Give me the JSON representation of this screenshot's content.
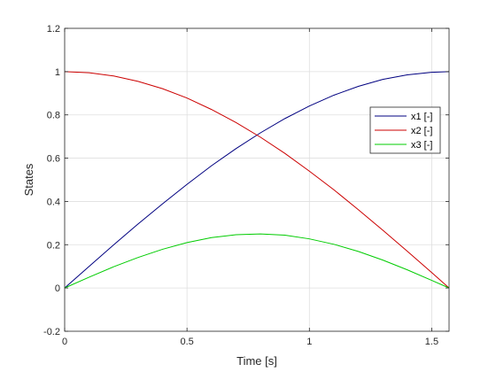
{
  "chart_data": {
    "type": "line",
    "title": "",
    "xlabel": "Time [s]",
    "ylabel": "States",
    "xlim": [
      0,
      1.5708
    ],
    "ylim": [
      -0.2,
      1.2
    ],
    "xticks": [
      0,
      0.5,
      1,
      1.5
    ],
    "xtick_labels": [
      "0",
      "0.5",
      "1",
      "1.5"
    ],
    "yticks": [
      -0.2,
      0,
      0.2,
      0.4,
      0.6,
      0.8,
      1,
      1.2
    ],
    "ytick_labels": [
      "-0.2",
      "0",
      "0.2",
      "0.4",
      "0.6",
      "0.8",
      "1",
      "1.2"
    ],
    "grid": true,
    "legend_position": "upper-right",
    "x": [
      0,
      0.1,
      0.2,
      0.3,
      0.4,
      0.5,
      0.6,
      0.7,
      0.8,
      0.9,
      1.0,
      1.1,
      1.2,
      1.3,
      1.4,
      1.5,
      1.5708
    ],
    "series": [
      {
        "name": "x1 [-]",
        "color": "#000080",
        "values": [
          0,
          0.1,
          0.199,
          0.296,
          0.389,
          0.479,
          0.565,
          0.644,
          0.717,
          0.783,
          0.841,
          0.891,
          0.932,
          0.964,
          0.985,
          0.997,
          1.0
        ]
      },
      {
        "name": "x2 [-]",
        "color": "#cc0000",
        "values": [
          1.0,
          0.995,
          0.98,
          0.955,
          0.921,
          0.878,
          0.825,
          0.765,
          0.697,
          0.622,
          0.54,
          0.454,
          0.362,
          0.267,
          0.17,
          0.071,
          0
        ]
      },
      {
        "name": "x3 [-]",
        "color": "#00cc00",
        "values": [
          0,
          0.05,
          0.098,
          0.141,
          0.179,
          0.21,
          0.233,
          0.246,
          0.25,
          0.244,
          0.227,
          0.202,
          0.169,
          0.129,
          0.084,
          0.035,
          0
        ]
      }
    ]
  }
}
